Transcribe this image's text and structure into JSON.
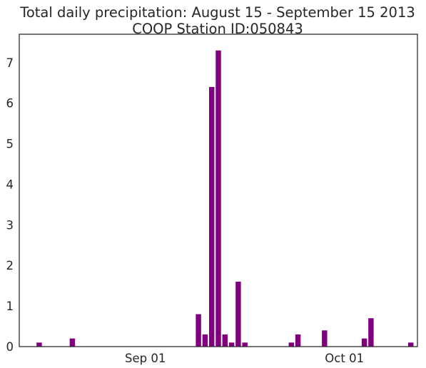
{
  "chart_data": {
    "type": "bar",
    "title": "Total daily precipitation: August 15 - September 15 2013",
    "subtitle": "COOP Station ID:050843",
    "xlabel": "",
    "ylabel": "",
    "ylim": [
      0,
      7.7
    ],
    "xlim": [
      "2013-08-13",
      "2013-10-12"
    ],
    "y_ticks": [
      0,
      1,
      2,
      3,
      4,
      5,
      6,
      7
    ],
    "x_ticks": [
      {
        "date": "2013-09-01",
        "label": "Sep 01"
      },
      {
        "date": "2013-10-01",
        "label": "Oct 01"
      }
    ],
    "bar_color": "#800080",
    "grid": false,
    "points": [
      {
        "date": "2013-08-16",
        "value": 0.1
      },
      {
        "date": "2013-08-21",
        "value": 0.2
      },
      {
        "date": "2013-09-09",
        "value": 0.8
      },
      {
        "date": "2013-09-10",
        "value": 0.3
      },
      {
        "date": "2013-09-11",
        "value": 6.4
      },
      {
        "date": "2013-09-12",
        "value": 7.3
      },
      {
        "date": "2013-09-13",
        "value": 0.3
      },
      {
        "date": "2013-09-14",
        "value": 0.1
      },
      {
        "date": "2013-09-15",
        "value": 1.6
      },
      {
        "date": "2013-09-16",
        "value": 0.1
      },
      {
        "date": "2013-09-23",
        "value": 0.1
      },
      {
        "date": "2013-09-24",
        "value": 0.3
      },
      {
        "date": "2013-09-28",
        "value": 0.4
      },
      {
        "date": "2013-10-04",
        "value": 0.2
      },
      {
        "date": "2013-10-05",
        "value": 0.7
      },
      {
        "date": "2013-10-11",
        "value": 0.1
      }
    ]
  }
}
